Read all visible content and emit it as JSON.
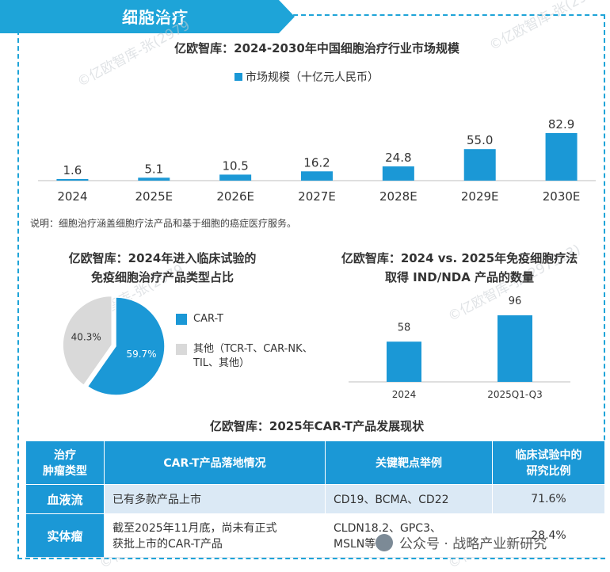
{
  "header": {
    "title": "细胞治疗",
    "accent": "#1ea4d8"
  },
  "watermark": "©亿欧智库-张(2979",
  "watermark2": "©亿欧智库-张(297913)",
  "note": "说明：细胞治疗涵盖细胞疗法产品和基于细胞的癌症医疗服务。",
  "brand": "公众号 · 战略产业新研究",
  "chart_data": [
    {
      "type": "bar",
      "title": "亿欧智库：2024-2030年中国细胞治疗行业市场规模",
      "legend": "市场规模（十亿元人民币）",
      "categories": [
        "2024",
        "2025E",
        "2026E",
        "2027E",
        "2028E",
        "2029E",
        "2030E"
      ],
      "values": [
        1.6,
        5.1,
        10.5,
        16.2,
        24.8,
        55.0,
        82.9
      ],
      "labels": [
        "1.6",
        "5.1",
        "10.5",
        "16.2",
        "24.8",
        "55.0",
        "82.9"
      ],
      "ylim": [
        0,
        90
      ],
      "color": "#1b98d6"
    },
    {
      "type": "pie",
      "title": [
        "亿欧智库：2024年进入临床试验的",
        "免疫细胞治疗产品类型占比"
      ],
      "slices": [
        {
          "name": "CAR-T",
          "value": 59.7,
          "label": "59.7%",
          "color": "#1b98d6"
        },
        {
          "name": "其他（TCR-T、CAR-NK、TIL、其他）",
          "value": 40.3,
          "label": "40.3%",
          "color": "#d9d9d9"
        }
      ],
      "legend": [
        "CAR-T",
        "其他（TCR-T、CAR-NK、",
        "TIL、其他）"
      ]
    },
    {
      "type": "bar",
      "title": [
        "亿欧智库：2024 vs. 2025年免疫细胞疗法",
        "取得 IND/NDA 产品的数量"
      ],
      "categories": [
        "2024",
        "2025Q1-Q3"
      ],
      "values": [
        58,
        96
      ],
      "labels": [
        "58",
        "96"
      ],
      "ylim": [
        0,
        110
      ],
      "color": "#1b98d6"
    }
  ],
  "table": {
    "title": "亿欧智库：2025年CAR-T产品发展现状",
    "headers": [
      "治疗\n肿瘤类型",
      "CAR-T产品落地情况",
      "关键靶点举例",
      "临床试验中的\n研究比例"
    ],
    "header_lines": [
      [
        "治疗",
        "肿瘤类型"
      ],
      [
        "CAR-T产品落地情况"
      ],
      [
        "关键靶点举例"
      ],
      [
        "临床试验中的",
        "研究比例"
      ]
    ],
    "rows": [
      {
        "type": "血液流",
        "status": [
          "已有多款产品上市"
        ],
        "targets": [
          "CD19、BCMA、CD22"
        ],
        "ratio": "71.6%"
      },
      {
        "type": "实体瘤",
        "status": [
          "截至2025年11月底，尚未有正式",
          "获批上市的CAR-T产品"
        ],
        "targets": [
          "CLDN18.2、GPC3、",
          "MSLN等"
        ],
        "ratio": "28.4%"
      }
    ]
  }
}
